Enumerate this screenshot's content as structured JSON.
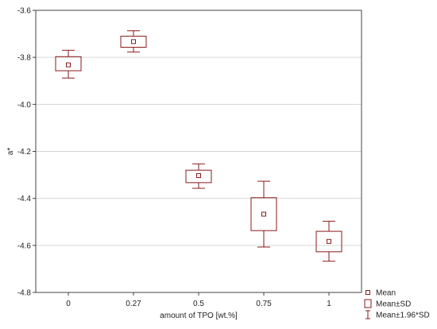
{
  "chart_data": {
    "type": "box",
    "title": "",
    "xlabel": "amount of TPO [wt.%]",
    "ylabel": "a*",
    "categories": [
      "0",
      "0.27",
      "0.5",
      "0.75",
      "1"
    ],
    "ylim": [
      -4.8,
      -3.6
    ],
    "yticks": [
      -3.6,
      -3.8,
      -4.0,
      -4.2,
      -4.4,
      -4.6,
      -4.8
    ],
    "ytick_labels": [
      "-3.6",
      "-3.8",
      "-4.0",
      "-4.2",
      "-4.4",
      "-4.6",
      "-4.8"
    ],
    "grid": "horizontal",
    "legend_position": "bottom-right",
    "color": "#8b1a1a",
    "points": [
      {
        "category": "0",
        "mean": -3.832,
        "sd_low": -3.857,
        "sd_high": -3.797,
        "ci_low": -3.888,
        "ci_high": -3.77
      },
      {
        "category": "0.27",
        "mean": -3.733,
        "sd_low": -3.757,
        "sd_high": -3.71,
        "ci_low": -3.777,
        "ci_high": -3.687
      },
      {
        "category": "0.5",
        "mean": -4.303,
        "sd_low": -4.333,
        "sd_high": -4.28,
        "ci_low": -4.357,
        "ci_high": -4.253
      },
      {
        "category": "0.75",
        "mean": -4.467,
        "sd_low": -4.537,
        "sd_high": -4.397,
        "ci_low": -4.607,
        "ci_high": -4.327
      },
      {
        "category": "1",
        "mean": -4.583,
        "sd_low": -4.627,
        "sd_high": -4.54,
        "ci_low": -4.667,
        "ci_high": -4.497
      }
    ],
    "legend": [
      {
        "label": "Mean",
        "symbol": "mean"
      },
      {
        "label": "Mean±SD",
        "symbol": "box"
      },
      {
        "label": "Mean±1.96*SD",
        "symbol": "whisker"
      }
    ]
  }
}
